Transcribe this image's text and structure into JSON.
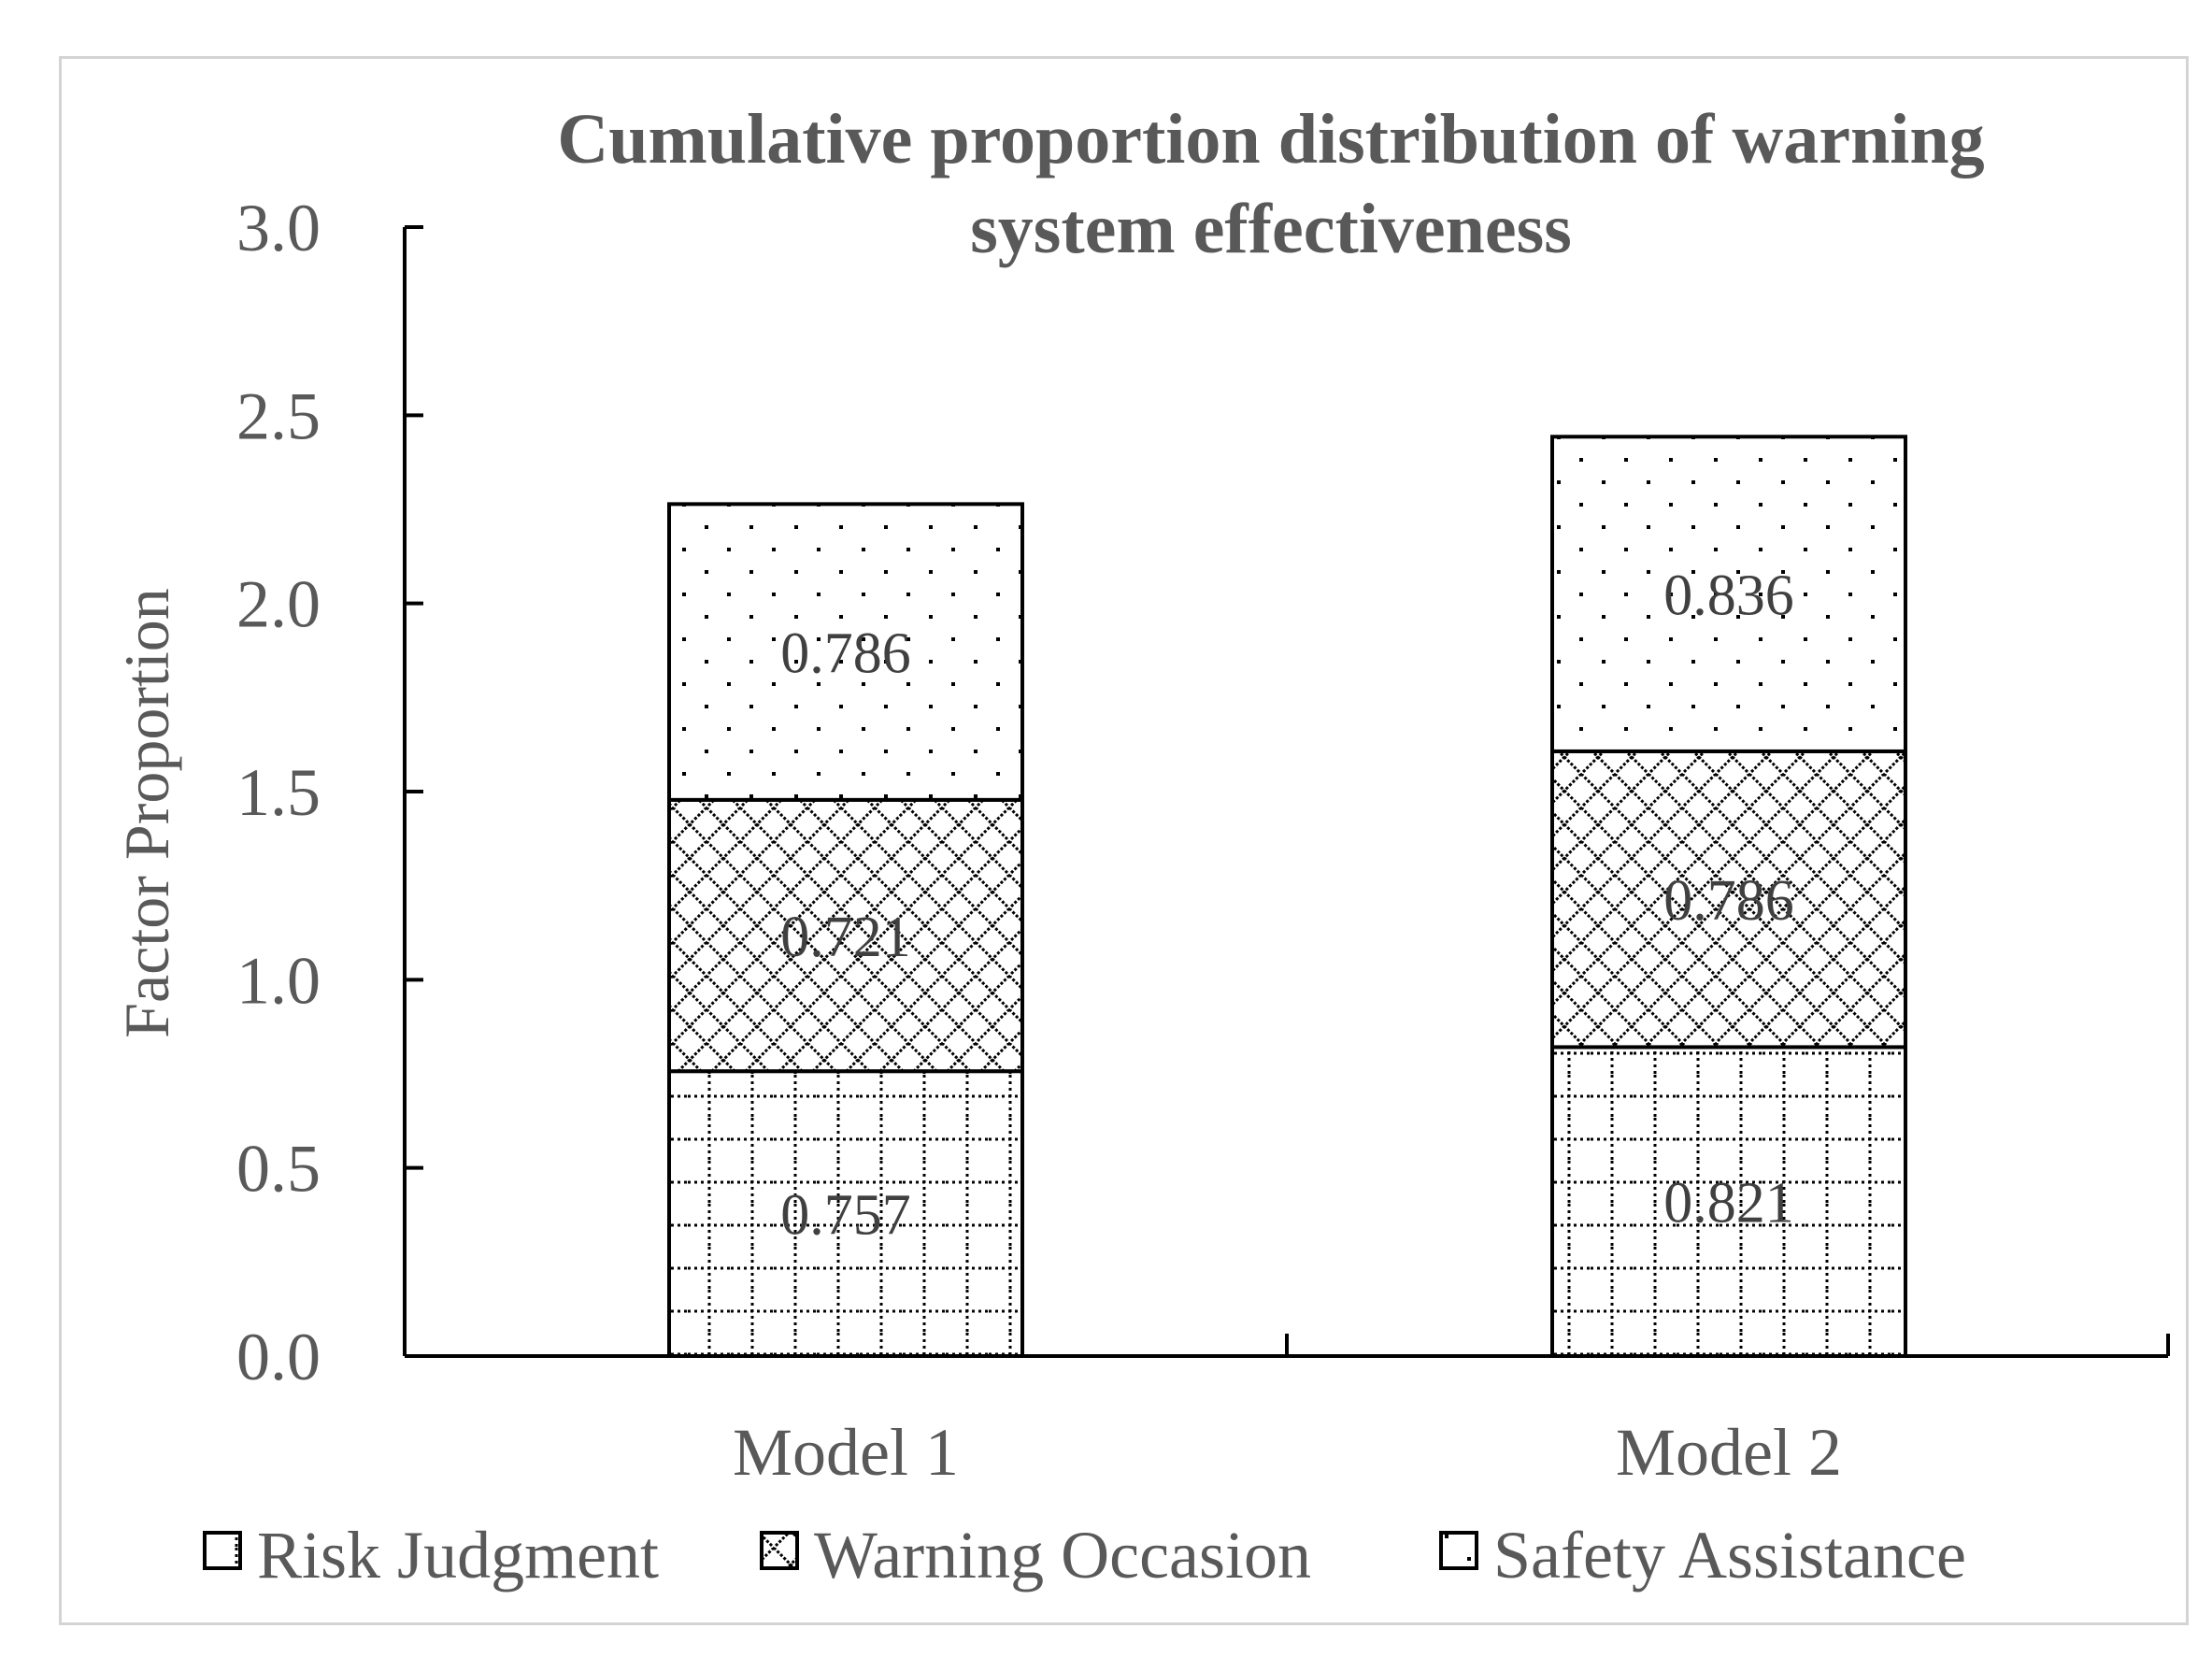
{
  "chart_data": {
    "type": "bar",
    "stacked": true,
    "title": "Cumulative proportion distribution of warning system effectiveness",
    "title_lines": [
      "Cumulative proportion distribution of warning",
      "system effectiveness"
    ],
    "ylabel": "Factor Proportion",
    "xlabel": "",
    "ylim": [
      0,
      3.0
    ],
    "yticks": [
      "0.0",
      "0.5",
      "1.0",
      "1.5",
      "2.0",
      "2.5",
      "3.0"
    ],
    "categories": [
      "Model 1",
      "Model 2"
    ],
    "series": [
      {
        "name": "Risk Judgment",
        "values": [
          0.757,
          0.821
        ],
        "labels": [
          "0.757",
          "0.821"
        ],
        "pattern": "dotted-grid"
      },
      {
        "name": "Warning Occasion",
        "values": [
          0.721,
          0.786
        ],
        "labels": [
          "0.721",
          "0.786"
        ],
        "pattern": "diamond-lattice"
      },
      {
        "name": "Safety Assistance",
        "values": [
          0.786,
          0.836
        ],
        "labels": [
          "0.786",
          "0.836"
        ],
        "pattern": "sparse-dots"
      }
    ],
    "grid": false,
    "legend_position": "bottom",
    "colors": {
      "frame": "#d4d4d4",
      "text": "#595959",
      "bar_edge": "#000000",
      "fill": "#ffffff"
    }
  }
}
